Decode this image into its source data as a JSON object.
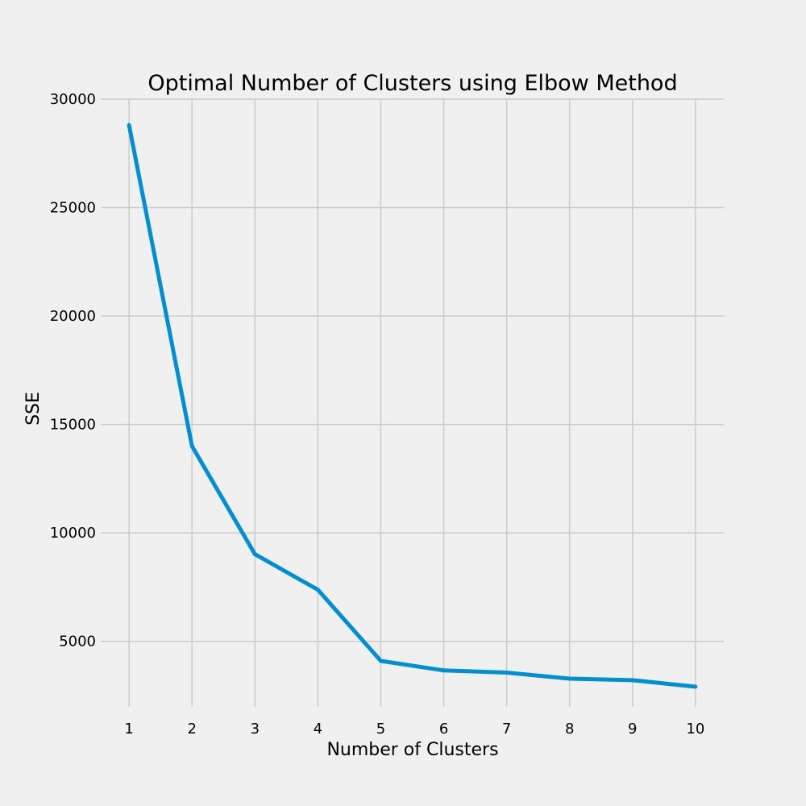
{
  "chart_data": {
    "type": "line",
    "title": "Optimal Number of Clusters using Elbow Method",
    "xlabel": "Number of Clusters",
    "ylabel": "SSE",
    "x": [
      1,
      2,
      3,
      4,
      5,
      6,
      7,
      8,
      9,
      10
    ],
    "x_ticks": [
      1,
      2,
      3,
      4,
      5,
      6,
      7,
      8,
      9,
      10
    ],
    "y_ticks": [
      5000,
      10000,
      15000,
      20000,
      25000,
      30000
    ],
    "xlim": [
      0.55,
      10.45
    ],
    "ylim": [
      1980,
      30000
    ],
    "grid": true,
    "series": [
      {
        "values": [
          28800,
          14000,
          9020,
          7380,
          4100,
          3660,
          3560,
          3280,
          3210,
          2910
        ],
        "color": "#008fd5"
      }
    ]
  },
  "style": {
    "background": "#f0f0f0",
    "grid_color": "#cbcbcb",
    "text_color": "#000000"
  }
}
